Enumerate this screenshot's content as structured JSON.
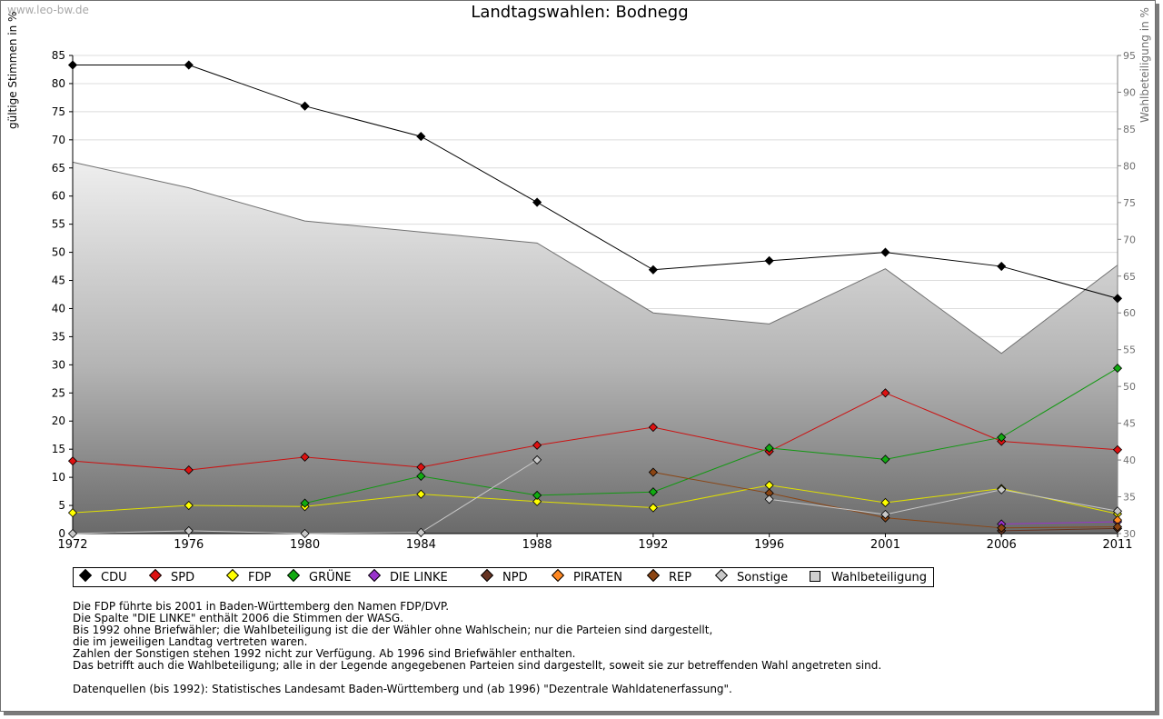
{
  "header": {
    "watermark": "www.leo-bw.de",
    "title": "Landtagswahlen: Bodnegg"
  },
  "chart_data": {
    "type": "line",
    "title": "Landtagswahlen: Bodnegg",
    "ylabel": "gültige Stimmen in %",
    "y2label": "Wahlbeteiligung in %",
    "xlabel": "",
    "ylim": [
      0,
      85
    ],
    "y2lim": [
      30,
      95
    ],
    "yticks": [
      0,
      5,
      10,
      15,
      20,
      25,
      30,
      35,
      40,
      45,
      50,
      55,
      60,
      65,
      70,
      75,
      80,
      85
    ],
    "y2ticks": [
      30,
      35,
      40,
      45,
      50,
      55,
      60,
      65,
      70,
      75,
      80,
      85,
      90,
      95
    ],
    "categories": [
      "1972",
      "1976",
      "1980",
      "1984",
      "1988",
      "1992",
      "1996",
      "2001",
      "2006",
      "2011"
    ],
    "area": {
      "name": "Wahlbeteiligung",
      "axis": "right",
      "color": "#a0a0a0",
      "values": [
        80.5,
        77.0,
        72.5,
        71.0,
        69.5,
        60.0,
        58.5,
        66.0,
        54.5,
        66.5
      ]
    },
    "series": [
      {
        "name": "CDU",
        "color": "#000000",
        "line": "#000000",
        "values": [
          83.3,
          83.3,
          76.0,
          70.6,
          58.9,
          46.9,
          48.5,
          50.0,
          47.5,
          41.8
        ]
      },
      {
        "name": "SPD",
        "color": "#dd1111",
        "line": "#cc1111",
        "values": [
          12.9,
          11.3,
          13.6,
          11.8,
          15.7,
          18.9,
          14.6,
          25.0,
          16.4,
          14.9
        ]
      },
      {
        "name": "FDP",
        "color": "#ffff00",
        "line": "#e0e000",
        "values": [
          3.7,
          5.0,
          4.8,
          7.0,
          5.7,
          4.6,
          8.6,
          5.5,
          8.0,
          3.5
        ]
      },
      {
        "name": "GRÜNE",
        "color": "#11aa11",
        "line": "#119911",
        "values": [
          null,
          null,
          5.4,
          10.2,
          6.8,
          7.4,
          15.2,
          13.2,
          17.1,
          29.4
        ]
      },
      {
        "name": "DIE LINKE",
        "color": "#9933cc",
        "line": "#9933cc",
        "values": [
          null,
          null,
          null,
          null,
          null,
          null,
          null,
          null,
          1.7,
          2.1
        ]
      },
      {
        "name": "NPD",
        "color": "#663322",
        "line": "#663322",
        "values": [
          null,
          null,
          null,
          null,
          null,
          null,
          null,
          null,
          0.5,
          0.9
        ]
      },
      {
        "name": "PIRATEN",
        "color": "#ff8822",
        "line": "#ff8822",
        "values": [
          null,
          null,
          null,
          null,
          null,
          null,
          null,
          null,
          null,
          2.4
        ]
      },
      {
        "name": "REP",
        "color": "#8b4513",
        "line": "#8b4513",
        "values": [
          null,
          null,
          null,
          null,
          null,
          10.9,
          7.2,
          2.8,
          1.0,
          1.2
        ]
      },
      {
        "name": "Sonstige",
        "color": "#c8c8c8",
        "line": "#c8c8c8",
        "values": [
          0.0,
          0.5,
          0.0,
          0.2,
          13.1,
          null,
          6.1,
          3.4,
          7.8,
          4.0
        ]
      }
    ]
  },
  "legend": {
    "items": [
      {
        "label": "CDU",
        "color": "#000000",
        "shape": "diamond"
      },
      {
        "label": "SPD",
        "color": "#dd1111",
        "shape": "diamond"
      },
      {
        "label": "FDP",
        "color": "#ffff00",
        "shape": "diamond"
      },
      {
        "label": "GRÜNE",
        "color": "#11aa11",
        "shape": "diamond"
      },
      {
        "label": "DIE LINKE",
        "color": "#9933cc",
        "shape": "diamond"
      },
      {
        "label": "NPD",
        "color": "#663322",
        "shape": "diamond"
      },
      {
        "label": "PIRATEN",
        "color": "#ff8822",
        "shape": "diamond"
      },
      {
        "label": "REP",
        "color": "#8b4513",
        "shape": "diamond"
      },
      {
        "label": "Sonstige",
        "color": "#c8c8c8",
        "shape": "diamond"
      },
      {
        "label": "Wahlbeteiligung",
        "color": "#d0d0d0",
        "shape": "square"
      }
    ]
  },
  "notes": {
    "lines": [
      "Die FDP führte bis 2001 in Baden-Württemberg den Namen FDP/DVP.",
      "Die Spalte \"DIE LINKE\" enthält 2006 die Stimmen der WASG.",
      "Bis 1992 ohne Briefwähler; die Wahlbeteiligung ist die der Wähler ohne Wahlschein; nur die Parteien sind dargestellt,",
      "die im jeweiligen Landtag vertreten waren.",
      "Zahlen der Sonstigen stehen 1992 nicht zur Verfügung. Ab 1996 sind Briefwähler enthalten.",
      "Das betrifft auch die Wahlbeteiligung; alle in der Legende angegebenen Parteien sind dargestellt, soweit sie zur betreffenden Wahl angetreten sind."
    ],
    "source": "Datenquellen (bis 1992): Statistisches Landesamt Baden-Württemberg und (ab 1996) \"Dezentrale Wahldatenerfassung\"."
  }
}
